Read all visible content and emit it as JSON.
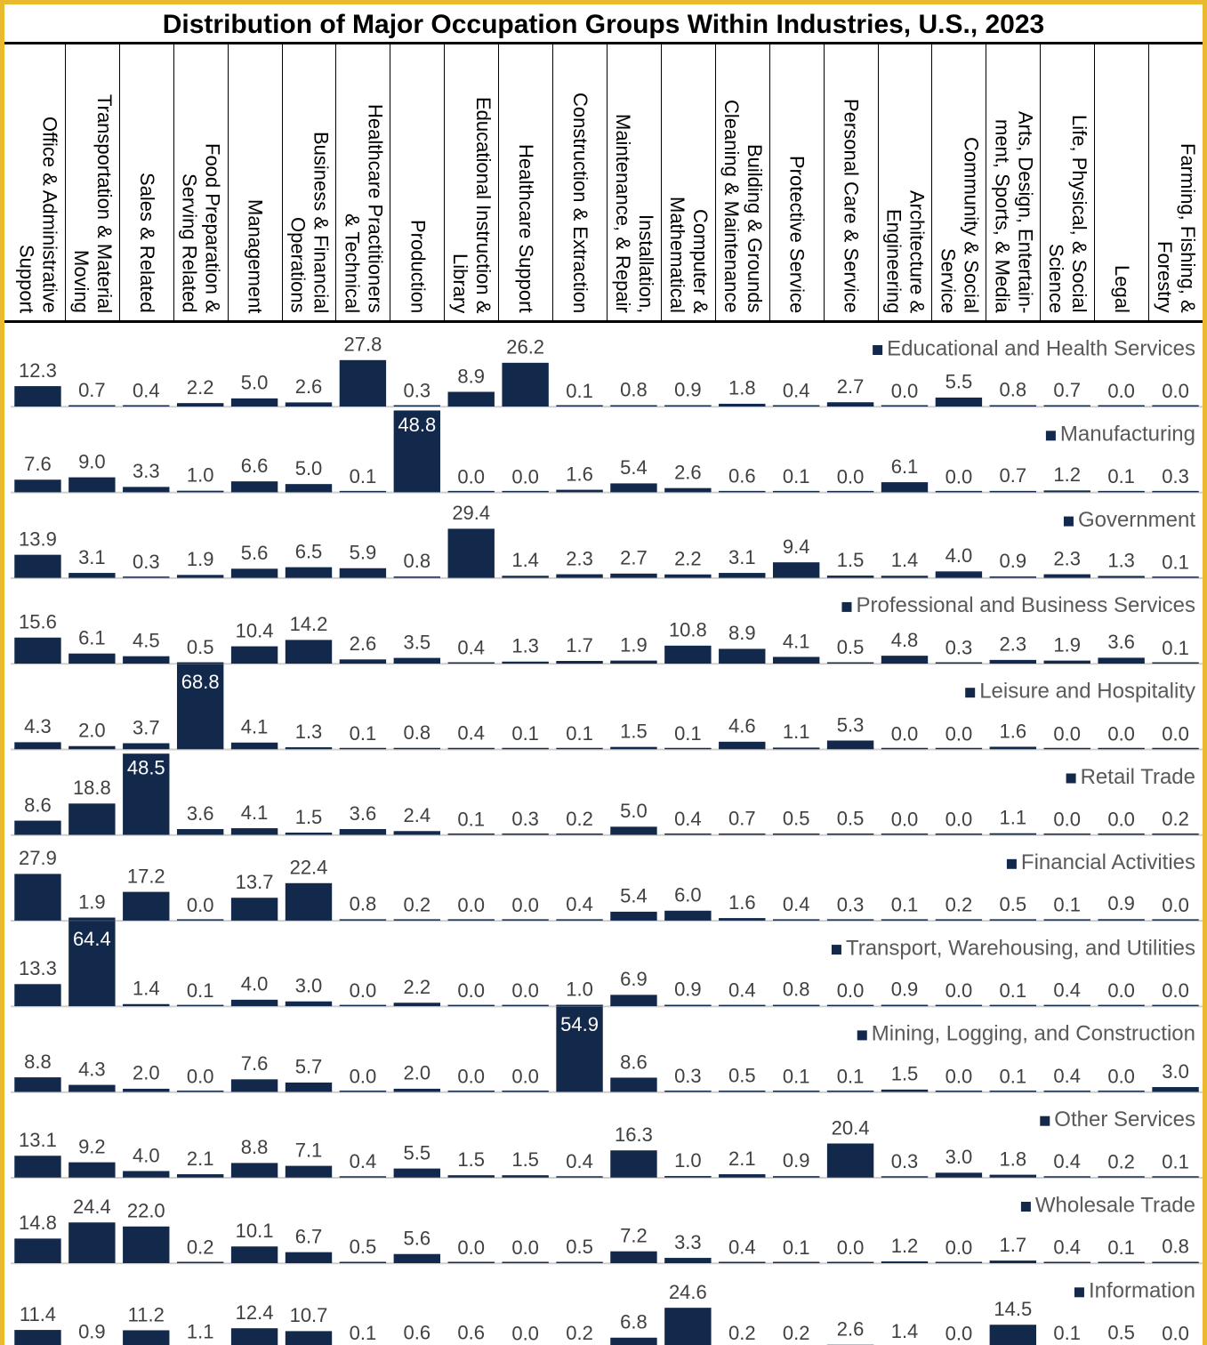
{
  "chart_data": {
    "type": "bar",
    "title": "Distribution of Major Occupation Groups Within Industries, U.S., 2023",
    "categories": [
      "Office & Administrative\nSupport",
      "Transportation & Material\nMoving",
      "Sales & Related",
      "Food Preparation &\nServing Related",
      "Management",
      "Business & Financial\nOperations",
      "Healthcare Practitioners\n& Technical",
      "Production",
      "Educational Instruction &\nLibrary",
      "Healthcare Support",
      "Construction & Extraction",
      "Installation,\nMaintenance, & Repair",
      "Computer &\nMathematical",
      "Building & Grounds\nCleaning & Maintenance",
      "Protective Service",
      "Personal Care & Service",
      "Architecture &\nEngineering",
      "Community & Social\nService",
      "Arts, Design, Entertain-\nment, Sports, & Media",
      "Life, Physical, & Social\nScience",
      "Legal",
      "Farming, Fishing, &\nForestry"
    ],
    "ylim": [
      0,
      51
    ],
    "series": [
      {
        "name": "Educational and Health Services",
        "color": "#13294b",
        "values": [
          12.3,
          0.7,
          0.4,
          2.2,
          5.0,
          2.6,
          27.8,
          0.3,
          8.9,
          26.2,
          0.1,
          0.8,
          0.9,
          1.8,
          0.4,
          2.7,
          0.0,
          5.5,
          0.8,
          0.7,
          0.0,
          0.0
        ],
        "value_labels": [
          "12.3",
          "0.7",
          "0.4",
          "2.2",
          "5.0",
          "2.6",
          "27.8",
          "0.3",
          "8.9",
          "26.2",
          "0.1",
          "0.8",
          "0.9",
          "1.8",
          "0.4",
          "2.7",
          "0.0",
          "5.5",
          "0.8",
          "0.7",
          "0.0",
          "0.0"
        ]
      },
      {
        "name": "Manufacturing",
        "color": "#13294b",
        "values": [
          7.6,
          9.0,
          3.3,
          1.0,
          6.6,
          5.0,
          0.1,
          48.8,
          0.0,
          0.0,
          1.6,
          5.4,
          2.6,
          0.6,
          0.1,
          0.0,
          6.1,
          0.0,
          0.7,
          1.2,
          0.1,
          0.3
        ],
        "value_labels": [
          "7.6",
          "9.0",
          "3.3",
          "1.0",
          "6.6",
          "5.0",
          "0.1",
          "48.8",
          "0.0",
          "0.0",
          "1.6",
          "5.4",
          "2.6",
          "0.6",
          "0.1",
          "0.0",
          "6.1",
          "0.0",
          "0.7",
          "1.2",
          "0.1",
          "0.3"
        ]
      },
      {
        "name": "Government",
        "color": "#13294b",
        "values": [
          13.9,
          3.1,
          0.3,
          1.9,
          5.6,
          6.5,
          5.9,
          0.8,
          29.4,
          1.4,
          2.3,
          2.7,
          2.2,
          3.1,
          9.4,
          1.5,
          1.4,
          4.0,
          0.9,
          2.3,
          1.3,
          0.1
        ],
        "value_labels": [
          "13.9",
          "3.1",
          "0.3",
          "1.9",
          "5.6",
          "6.5",
          "5.9",
          "0.8",
          "29.4",
          "1.4",
          "2.3",
          "2.7",
          "2.2",
          "3.1",
          "9.4",
          "1.5",
          "1.4",
          "4.0",
          "0.9",
          "2.3",
          "1.3",
          "0.1"
        ]
      },
      {
        "name": "Professional and Business Services",
        "color": "#13294b",
        "values": [
          15.6,
          6.1,
          4.5,
          0.5,
          10.4,
          14.2,
          2.6,
          3.5,
          0.4,
          1.3,
          1.7,
          1.9,
          10.8,
          8.9,
          4.1,
          0.5,
          4.8,
          0.3,
          2.3,
          1.9,
          3.6,
          0.1
        ],
        "value_labels": [
          "15.6",
          "6.1",
          "4.5",
          "0.5",
          "10.4",
          "14.2",
          "2.6",
          "3.5",
          "0.4",
          "1.3",
          "1.7",
          "1.9",
          "10.8",
          "8.9",
          "4.1",
          "0.5",
          "4.8",
          "0.3",
          "2.3",
          "1.9",
          "3.6",
          "0.1"
        ]
      },
      {
        "name": "Leisure and Hospitality",
        "color": "#13294b",
        "values": [
          4.3,
          2.0,
          3.7,
          68.8,
          4.1,
          1.3,
          0.1,
          0.8,
          0.4,
          0.1,
          0.1,
          1.5,
          0.1,
          4.6,
          1.1,
          5.3,
          0.0,
          0.0,
          1.6,
          0.0,
          0.0,
          0.0
        ],
        "value_labels": [
          "4.3",
          "2.0",
          "3.7",
          "68.8",
          "4.1",
          "1.3",
          "0.1",
          "0.8",
          "0.4",
          "0.1",
          "0.1",
          "1.5",
          "0.1",
          "4.6",
          "1.1",
          "5.3",
          "0.0",
          "0.0",
          "1.6",
          "0.0",
          "0.0",
          "0.0"
        ]
      },
      {
        "name": "Retail Trade",
        "color": "#13294b",
        "values": [
          8.6,
          18.8,
          48.5,
          3.6,
          4.1,
          1.5,
          3.6,
          2.4,
          0.1,
          0.3,
          0.2,
          5.0,
          0.4,
          0.7,
          0.5,
          0.5,
          0.0,
          0.0,
          1.1,
          0.0,
          0.0,
          0.2
        ],
        "value_labels": [
          "8.6",
          "18.8",
          "48.5",
          "3.6",
          "4.1",
          "1.5",
          "3.6",
          "2.4",
          "0.1",
          "0.3",
          "0.2",
          "5.0",
          "0.4",
          "0.7",
          "0.5",
          "0.5",
          "0.0",
          "0.0",
          "1.1",
          "0.0",
          "0.0",
          "0.2"
        ]
      },
      {
        "name": "Financial Activities",
        "color": "#13294b",
        "values": [
          27.9,
          1.9,
          17.2,
          0.0,
          13.7,
          22.4,
          0.8,
          0.2,
          0.0,
          0.0,
          0.4,
          5.4,
          6.0,
          1.6,
          0.4,
          0.3,
          0.1,
          0.2,
          0.5,
          0.1,
          0.9,
          0.0
        ],
        "value_labels": [
          "27.9",
          "1.9",
          "17.2",
          "0.0",
          "13.7",
          "22.4",
          "0.8",
          "0.2",
          "0.0",
          "0.0",
          "0.4",
          "5.4",
          "6.0",
          "1.6",
          "0.4",
          "0.3",
          "0.1",
          "0.2",
          "0.5",
          "0.1",
          "0.9",
          "0.0"
        ]
      },
      {
        "name": "Transport, Warehousing, and Utilities",
        "color": "#13294b",
        "values": [
          13.3,
          64.4,
          1.4,
          0.1,
          4.0,
          3.0,
          0.0,
          2.2,
          0.0,
          0.0,
          1.0,
          6.9,
          0.9,
          0.4,
          0.8,
          0.0,
          0.9,
          0.0,
          0.1,
          0.4,
          0.0,
          0.0
        ],
        "value_labels": [
          "13.3",
          "64.4",
          "1.4",
          "0.1",
          "4.0",
          "3.0",
          "0.0",
          "2.2",
          "0.0",
          "0.0",
          "1.0",
          "6.9",
          "0.9",
          "0.4",
          "0.8",
          "0.0",
          "0.9",
          "0.0",
          "0.1",
          "0.4",
          "0.0",
          "0.0"
        ]
      },
      {
        "name": "Mining, Logging, and Construction",
        "color": "#13294b",
        "values": [
          8.8,
          4.3,
          2.0,
          0.0,
          7.6,
          5.7,
          0.0,
          2.0,
          0.0,
          0.0,
          54.9,
          8.6,
          0.3,
          0.5,
          0.1,
          0.1,
          1.5,
          0.0,
          0.1,
          0.4,
          0.0,
          3.0
        ],
        "value_labels": [
          "8.8",
          "4.3",
          "2.0",
          "0.0",
          "7.6",
          "5.7",
          "0.0",
          "2.0",
          "0.0",
          "0.0",
          "54.9",
          "8.6",
          "0.3",
          "0.5",
          "0.1",
          "0.1",
          "1.5",
          "0.0",
          "0.1",
          "0.4",
          "0.0",
          "3.0"
        ]
      },
      {
        "name": "Other Services",
        "color": "#13294b",
        "values": [
          13.1,
          9.2,
          4.0,
          2.1,
          8.8,
          7.1,
          0.4,
          5.5,
          1.5,
          1.5,
          0.4,
          16.3,
          1.0,
          2.1,
          0.9,
          20.4,
          0.3,
          3.0,
          1.8,
          0.4,
          0.2,
          0.1
        ],
        "value_labels": [
          "13.1",
          "9.2",
          "4.0",
          "2.1",
          "8.8",
          "7.1",
          "0.4",
          "5.5",
          "1.5",
          "1.5",
          "0.4",
          "16.3",
          "1.0",
          "2.1",
          "0.9",
          "20.4",
          "0.3",
          "3.0",
          "1.8",
          "0.4",
          "0.2",
          "0.1"
        ]
      },
      {
        "name": "Wholesale Trade",
        "color": "#13294b",
        "values": [
          14.8,
          24.4,
          22.0,
          0.2,
          10.1,
          6.7,
          0.5,
          5.6,
          0.0,
          0.0,
          0.5,
          7.2,
          3.3,
          0.4,
          0.1,
          0.0,
          1.2,
          0.0,
          1.7,
          0.4,
          0.1,
          0.8
        ],
        "value_labels": [
          "14.8",
          "24.4",
          "22.0",
          "0.2",
          "10.1",
          "6.7",
          "0.5",
          "5.6",
          "0.0",
          "0.0",
          "0.5",
          "7.2",
          "3.3",
          "0.4",
          "0.1",
          "0.0",
          "1.2",
          "0.0",
          "1.7",
          "0.4",
          "0.1",
          "0.8"
        ]
      },
      {
        "name": "Information",
        "color": "#13294b",
        "values": [
          11.4,
          0.9,
          11.2,
          1.1,
          12.4,
          10.7,
          0.1,
          0.6,
          0.6,
          0.0,
          0.2,
          6.8,
          24.6,
          0.2,
          0.2,
          2.6,
          1.4,
          0.0,
          14.5,
          0.1,
          0.5,
          0.0
        ],
        "value_labels": [
          "11.4",
          "0.9",
          "11.2",
          "1.1",
          "12.4",
          "10.7",
          "0.1",
          "0.6",
          "0.6",
          "0.0",
          "0.2",
          "6.8",
          "24.6",
          "0.2",
          "0.2",
          "2.6",
          "1.4",
          "0.0",
          "14.5",
          "0.1",
          "0.5",
          "0.0"
        ]
      }
    ]
  }
}
